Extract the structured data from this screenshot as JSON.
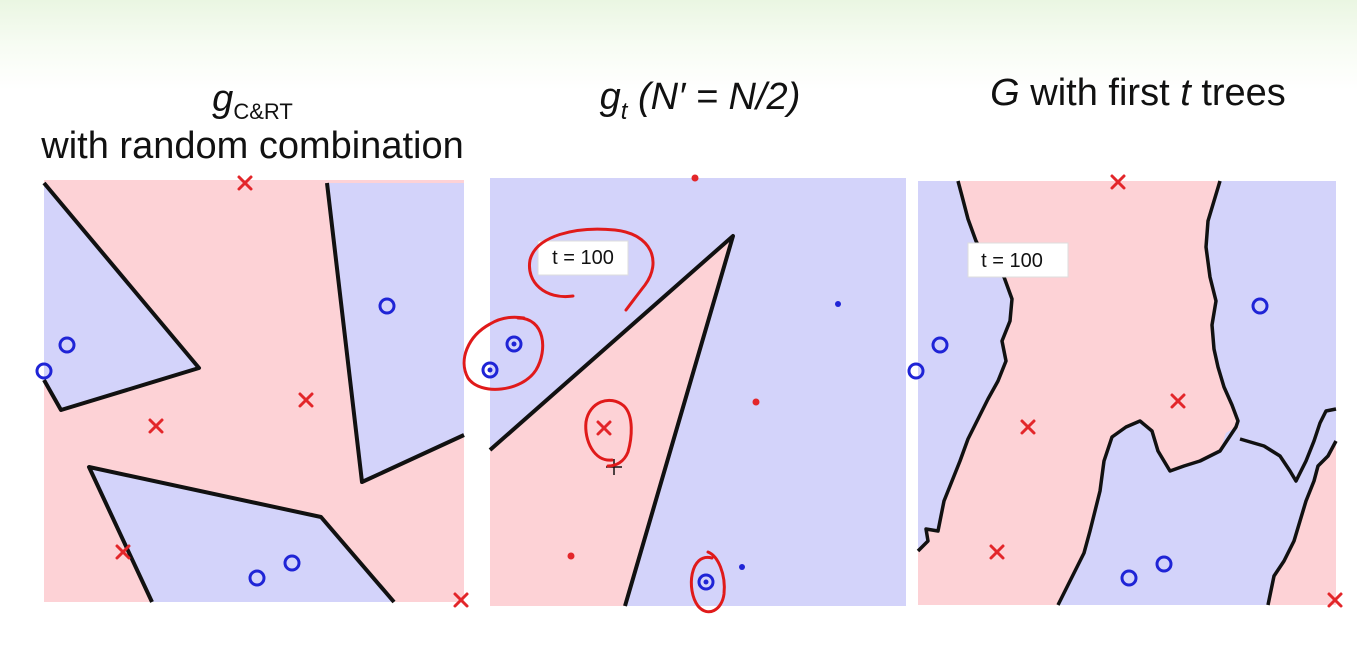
{
  "titles": {
    "left": {
      "g": "g",
      "sub": "C&RT",
      "rest": "with random combination"
    },
    "middle": {
      "g": "g",
      "sub": "t",
      "rest": " (N′ = N/2)"
    },
    "right": {
      "G": "G",
      "mid": " with first ",
      "t": "t",
      "end": " trees"
    }
  },
  "panels": {
    "middle": {
      "label": "t = 100"
    },
    "right": {
      "label": "t = 100"
    }
  },
  "colors": {
    "class_pos_region": "#fdd2d6",
    "class_neg_region": "#d3d3fa",
    "x_marker": "#e3262a",
    "o_marker": "#1f24d6",
    "boundary": "#111111",
    "annotation_ink": "#e01a1a"
  }
}
